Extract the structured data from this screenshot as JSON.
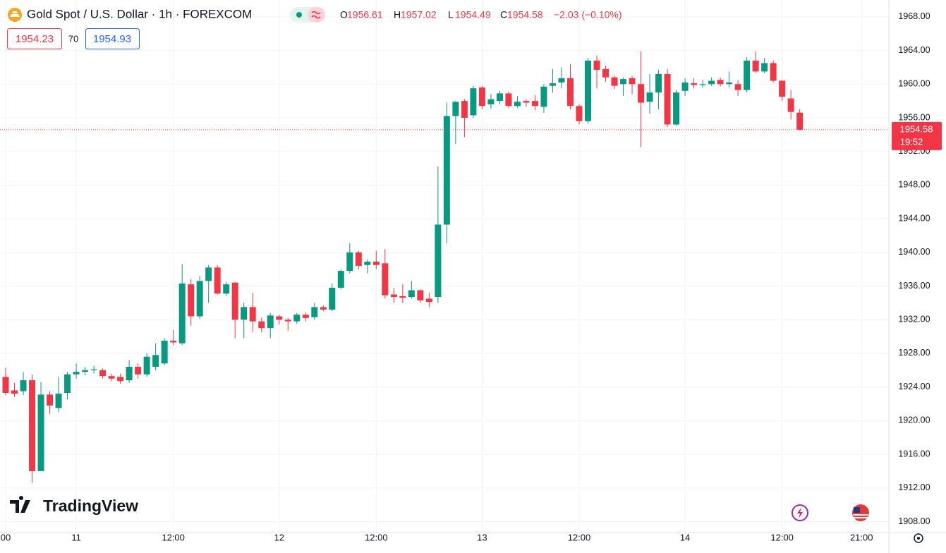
{
  "chart_data": {
    "type": "candlestick",
    "symbol": "Gold Spot / U.S. Dollar · 1h · FOREXCOM",
    "ohlc_labels": [
      "O",
      "H",
      "L",
      "C"
    ],
    "ohlc": [
      1956.61,
      1957.02,
      1954.49,
      1954.58
    ],
    "change": "−2.03 (−0.10%)",
    "bid": 1954.23,
    "spread": 70,
    "ask": 1954.93,
    "last_price": 1954.58,
    "countdown": "19:52",
    "up_color": "#089981",
    "down_color": "#f23645",
    "grid": true,
    "xlim": [
      -0.64,
      100.1
    ],
    "xticks": [
      {
        "value": 0,
        "label": "00"
      },
      {
        "value": 8,
        "label": "11"
      },
      {
        "value": 19,
        "label": "12:00"
      },
      {
        "value": 31,
        "label": "12"
      },
      {
        "value": 42,
        "label": "12:00"
      },
      {
        "value": 54,
        "label": "13"
      },
      {
        "value": 65,
        "label": "12:00"
      },
      {
        "value": 77,
        "label": "14"
      },
      {
        "value": 88,
        "label": "12:00"
      },
      {
        "value": 97,
        "label": "21:00"
      }
    ],
    "ylim": [
      1906.7,
      1970.0
    ],
    "yticks": [
      {
        "value": 1908,
        "label": "1908.00"
      },
      {
        "value": 1912,
        "label": "1912.00"
      },
      {
        "value": 1916,
        "label": "1916.00"
      },
      {
        "value": 1920,
        "label": "1920.00"
      },
      {
        "value": 1924,
        "label": "1924.00"
      },
      {
        "value": 1928,
        "label": "1928.00"
      },
      {
        "value": 1932,
        "label": "1932.00"
      },
      {
        "value": 1936,
        "label": "1936.00"
      },
      {
        "value": 1940,
        "label": "1940.00"
      },
      {
        "value": 1944,
        "label": "1944.00"
      },
      {
        "value": 1948,
        "label": "1948.00"
      },
      {
        "value": 1952,
        "label": "1952.00"
      },
      {
        "value": 1956,
        "label": "1956.00"
      },
      {
        "value": 1960,
        "label": "1960.00"
      },
      {
        "value": 1964,
        "label": "1964.00"
      },
      {
        "value": 1968,
        "label": "1968.00"
      }
    ],
    "open": [
      1925.2,
      1923.6,
      1923.5,
      1924.8,
      1914.0,
      1923.1,
      1921.5,
      1923.3,
      1925.5,
      1925.8,
      1926.0,
      1926.0,
      1925.3,
      1925.2,
      1924.8,
      1926.4,
      1925.5,
      1926.4,
      1926.8,
      1929.5,
      1929.2,
      1936.2,
      1932.4,
      1936.6,
      1938.2,
      1935.1,
      1936.4,
      1932.0,
      1933.5,
      1931.8,
      1931.0,
      1932.4,
      1932.0,
      1931.8,
      1932.6,
      1932.3,
      1933.5,
      1933.2,
      1935.8,
      1937.8,
      1940.0,
      1938.5,
      1938.9,
      1938.7,
      1935.0,
      1934.8,
      1934.7,
      1935.5,
      1934.5,
      1934.7,
      1943.3,
      1956.2,
      1958.0,
      1956.3,
      1959.6,
      1957.6,
      1958.0,
      1958.9,
      1957.4,
      1958.0,
      1958.0,
      1957.3,
      1959.8,
      1960.2,
      1960.7,
      1957.4,
      1955.6,
      1962.8,
      1961.8,
      1960.8,
      1960.0,
      1960.7,
      1960.0,
      1957.9,
      1959.0,
      1961.2,
      1955.2,
      1959.2,
      1960.1,
      1959.9,
      1960.0,
      1960.5,
      1960.0,
      1960.0,
      1959.3,
      1962.8,
      1961.5,
      1962.5,
      1960.4,
      1958.3,
      1956.61
    ],
    "high": [
      1926.3,
      1924.5,
      1925.8,
      1925.5,
      1924.6,
      1923.5,
      1925.2,
      1925.8,
      1926.8,
      1926.4,
      1926.5,
      1926.2,
      1925.6,
      1925.6,
      1927.2,
      1926.8,
      1928.0,
      1929.2,
      1929.8,
      1930.8,
      1938.6,
      1936.8,
      1937.2,
      1938.5,
      1938.5,
      1936.5,
      1936.5,
      1934.0,
      1935.2,
      1932.2,
      1932.8,
      1932.6,
      1932.2,
      1932.8,
      1932.9,
      1934.0,
      1933.7,
      1936.3,
      1938.0,
      1941.1,
      1940.2,
      1939.2,
      1940.2,
      1940.4,
      1935.8,
      1936.2,
      1936.6,
      1935.6,
      1935.2,
      1950.2,
      1957.8,
      1958.0,
      1958.2,
      1959.8,
      1959.8,
      1958.8,
      1959.2,
      1959.1,
      1958.6,
      1958.2,
      1958.7,
      1960.0,
      1961.8,
      1962.0,
      1962.4,
      1957.6,
      1963.1,
      1963.4,
      1962.2,
      1961.0,
      1960.8,
      1961.0,
      1963.9,
      1961.2,
      1961.7,
      1961.8,
      1959.3,
      1960.7,
      1960.7,
      1960.5,
      1960.8,
      1960.8,
      1961.5,
      1960.5,
      1963.2,
      1963.9,
      1963.1,
      1962.8,
      1960.5,
      1959.3,
      1957.02
    ],
    "low": [
      1923.0,
      1922.8,
      1923.0,
      1912.6,
      1914.0,
      1920.8,
      1921.0,
      1922.5,
      1925.0,
      1925.4,
      1925.6,
      1925.0,
      1924.7,
      1924.4,
      1924.5,
      1925.0,
      1925.2,
      1926.0,
      1926.6,
      1929.0,
      1929.0,
      1931.3,
      1932.1,
      1934.0,
      1935.0,
      1934.8,
      1929.8,
      1929.8,
      1930.5,
      1930.5,
      1929.8,
      1931.4,
      1930.7,
      1931.5,
      1931.8,
      1932.0,
      1933.0,
      1933.0,
      1935.6,
      1937.5,
      1938.0,
      1937.5,
      1938.0,
      1934.5,
      1934.0,
      1934.0,
      1934.5,
      1934.0,
      1933.5,
      1934.0,
      1941.1,
      1952.9,
      1953.7,
      1956.0,
      1957.0,
      1957.1,
      1957.6,
      1957.2,
      1957.2,
      1957.3,
      1956.9,
      1956.6,
      1959.0,
      1959.5,
      1957.0,
      1955.2,
      1955.3,
      1959.5,
      1960.3,
      1959.4,
      1958.6,
      1958.8,
      1952.5,
      1956.5,
      1957.0,
      1954.9,
      1955.0,
      1958.6,
      1959.5,
      1959.6,
      1959.8,
      1959.7,
      1959.6,
      1958.6,
      1959.0,
      1961.3,
      1961.3,
      1960.2,
      1958.0,
      1955.8,
      1954.49
    ],
    "close": [
      1923.3,
      1923.2,
      1924.8,
      1914.0,
      1923.1,
      1921.8,
      1923.2,
      1925.5,
      1925.8,
      1926.0,
      1926.1,
      1925.3,
      1925.0,
      1924.7,
      1926.4,
      1925.5,
      1927.6,
      1927.8,
      1929.5,
      1929.3,
      1936.3,
      1932.4,
      1936.6,
      1938.2,
      1935.1,
      1936.2,
      1932.0,
      1933.5,
      1931.8,
      1931.0,
      1932.5,
      1932.0,
      1931.8,
      1932.6,
      1932.2,
      1933.5,
      1933.2,
      1935.8,
      1937.8,
      1940.0,
      1938.4,
      1938.9,
      1938.5,
      1934.9,
      1934.7,
      1934.6,
      1935.5,
      1934.3,
      1934.1,
      1943.3,
      1956.2,
      1957.9,
      1956.0,
      1959.5,
      1957.4,
      1958.2,
      1958.9,
      1957.4,
      1957.9,
      1957.8,
      1957.4,
      1959.7,
      1960.1,
      1960.7,
      1957.4,
      1955.6,
      1962.8,
      1961.7,
      1960.8,
      1959.8,
      1960.6,
      1960.0,
      1957.8,
      1959.0,
      1961.2,
      1955.2,
      1959.0,
      1960.2,
      1959.9,
      1960.0,
      1960.4,
      1960.0,
      1960.2,
      1959.3,
      1962.8,
      1961.5,
      1962.5,
      1960.4,
      1958.5,
      1956.7,
      1954.58
    ]
  },
  "branding": "TradingView"
}
